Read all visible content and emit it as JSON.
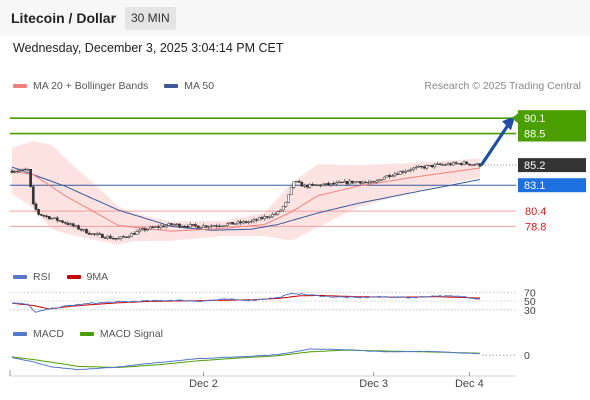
{
  "header": {
    "title": "Litecoin / Dollar",
    "timeframe": "30 MIN"
  },
  "datetime": "Wednesday, December 3, 2025 3:04:14 PM CET",
  "credit": "Research © 2025 Trading Central",
  "colors": {
    "ma20": "#f08080",
    "ma50": "#3a5a9c",
    "resistance": "#4a9e00",
    "support": "#e87a7a",
    "last": "#333333",
    "pivot": "#1e6fe0",
    "rsi": "#5577cc",
    "rsi_ma": "#cc0000",
    "macd": "#5577cc",
    "macd_signal": "#4a9e00"
  },
  "chart_data": [
    {
      "type": "candlestick",
      "legend": [
        {
          "name": "MA 20 + Bollinger Bands",
          "color": "#f08080"
        },
        {
          "name": "MA 50",
          "color": "#3a5a9c"
        }
      ],
      "ylim": [
        75.5,
        92.0
      ],
      "levels": [
        {
          "value": 90.1,
          "label": "90.1",
          "kind": "resistance"
        },
        {
          "value": 88.5,
          "label": "88.5",
          "kind": "resistance"
        },
        {
          "value": 85.2,
          "label": "85.2",
          "kind": "last"
        },
        {
          "value": 83.1,
          "label": "83.1",
          "kind": "pivot"
        },
        {
          "value": 80.4,
          "label": "80.4",
          "kind": "support"
        },
        {
          "value": 78.8,
          "label": "78.8",
          "kind": "support"
        }
      ],
      "arrow": {
        "from": 85.2,
        "to": 90.1,
        "direction": "up"
      },
      "close_anchors": [
        [
          0,
          84.6
        ],
        [
          6,
          84.7
        ],
        [
          8,
          81.0
        ],
        [
          10,
          80.1
        ],
        [
          20,
          79.2
        ],
        [
          30,
          78.0
        ],
        [
          40,
          77.5
        ],
        [
          50,
          78.5
        ],
        [
          60,
          79.0
        ],
        [
          70,
          78.8
        ],
        [
          80,
          79.0
        ],
        [
          90,
          79.3
        ],
        [
          100,
          80.2
        ],
        [
          103,
          81.2
        ],
        [
          106,
          83.5
        ],
        [
          110,
          83.0
        ],
        [
          120,
          83.2
        ],
        [
          130,
          83.5
        ],
        [
          136,
          83.3
        ],
        [
          140,
          84.0
        ],
        [
          150,
          84.8
        ],
        [
          160,
          85.2
        ],
        [
          170,
          85.4
        ],
        [
          176,
          85.2
        ]
      ],
      "ma20_anchors": [
        [
          0,
          84.6
        ],
        [
          8,
          84.2
        ],
        [
          20,
          82.0
        ],
        [
          40,
          78.9
        ],
        [
          60,
          78.3
        ],
        [
          80,
          78.6
        ],
        [
          95,
          79.0
        ],
        [
          105,
          80.3
        ],
        [
          115,
          82.0
        ],
        [
          130,
          83.0
        ],
        [
          150,
          83.9
        ],
        [
          176,
          84.9
        ]
      ],
      "ma50_anchors": [
        [
          0,
          85.0
        ],
        [
          20,
          83.0
        ],
        [
          40,
          80.5
        ],
        [
          60,
          78.8
        ],
        [
          75,
          78.4
        ],
        [
          90,
          78.5
        ],
        [
          100,
          79.0
        ],
        [
          115,
          80.2
        ],
        [
          130,
          81.2
        ],
        [
          150,
          82.3
        ],
        [
          176,
          83.7
        ]
      ],
      "bb_width_anchors": [
        [
          0,
          2.4
        ],
        [
          8,
          3.5
        ],
        [
          15,
          4.4
        ],
        [
          30,
          3.0
        ],
        [
          45,
          1.5
        ],
        [
          60,
          1.0
        ],
        [
          80,
          0.8
        ],
        [
          95,
          1.2
        ],
        [
          105,
          3.0
        ],
        [
          115,
          3.3
        ],
        [
          130,
          2.2
        ],
        [
          150,
          1.5
        ],
        [
          176,
          1.0
        ]
      ],
      "x_ticks": [
        {
          "index": 72,
          "label": "Dec 2"
        },
        {
          "index": 136,
          "label": "Dec 3"
        },
        {
          "index": 172,
          "label": "Dec 4"
        }
      ],
      "candles": 177
    },
    {
      "type": "line",
      "legend": [
        {
          "name": "RSI",
          "color": "#5577cc"
        },
        {
          "name": "9MA",
          "color": "#cc0000"
        }
      ],
      "ylim": [
        25,
        80
      ],
      "ref_levels": [
        {
          "value": 70,
          "label": "70"
        },
        {
          "value": 50,
          "label": "50"
        },
        {
          "value": 30,
          "label": "30"
        }
      ],
      "rsi_anchors": [
        [
          0,
          46
        ],
        [
          6,
          42
        ],
        [
          9,
          24
        ],
        [
          14,
          32
        ],
        [
          22,
          40
        ],
        [
          30,
          45
        ],
        [
          40,
          48
        ],
        [
          50,
          50
        ],
        [
          60,
          52
        ],
        [
          70,
          50
        ],
        [
          80,
          54
        ],
        [
          90,
          52
        ],
        [
          100,
          58
        ],
        [
          106,
          68
        ],
        [
          112,
          64
        ],
        [
          120,
          60
        ],
        [
          130,
          58
        ],
        [
          140,
          60
        ],
        [
          150,
          58
        ],
        [
          160,
          62
        ],
        [
          170,
          60
        ],
        [
          176,
          55
        ]
      ],
      "ma9_anchors": [
        [
          0,
          45
        ],
        [
          8,
          40
        ],
        [
          14,
          32
        ],
        [
          22,
          38
        ],
        [
          30,
          42
        ],
        [
          40,
          46
        ],
        [
          50,
          49
        ],
        [
          60,
          50
        ],
        [
          70,
          51
        ],
        [
          80,
          52
        ],
        [
          90,
          53
        ],
        [
          100,
          56
        ],
        [
          108,
          62
        ],
        [
          116,
          63
        ],
        [
          130,
          60
        ],
        [
          145,
          59
        ],
        [
          160,
          60
        ],
        [
          176,
          57
        ]
      ]
    },
    {
      "type": "line",
      "legend": [
        {
          "name": "MACD",
          "color": "#5577cc"
        },
        {
          "name": "MACD Signal",
          "color": "#4a9e00"
        }
      ],
      "ylim": [
        -1.5,
        1.0
      ],
      "ref_levels": [
        {
          "value": 0,
          "label": "0"
        }
      ],
      "macd_anchors": [
        [
          0,
          -0.2
        ],
        [
          8,
          -0.6
        ],
        [
          15,
          -1.05
        ],
        [
          25,
          -1.3
        ],
        [
          40,
          -1.05
        ],
        [
          55,
          -0.65
        ],
        [
          70,
          -0.3
        ],
        [
          85,
          -0.15
        ],
        [
          100,
          0.05
        ],
        [
          112,
          0.55
        ],
        [
          125,
          0.5
        ],
        [
          140,
          0.3
        ],
        [
          155,
          0.35
        ],
        [
          170,
          0.2
        ],
        [
          176,
          0.15
        ]
      ],
      "signal_anchors": [
        [
          0,
          -0.15
        ],
        [
          10,
          -0.45
        ],
        [
          25,
          -1.0
        ],
        [
          40,
          -1.1
        ],
        [
          55,
          -0.85
        ],
        [
          70,
          -0.5
        ],
        [
          85,
          -0.25
        ],
        [
          100,
          -0.05
        ],
        [
          112,
          0.3
        ],
        [
          125,
          0.45
        ],
        [
          140,
          0.38
        ],
        [
          155,
          0.3
        ],
        [
          170,
          0.22
        ],
        [
          176,
          0.18
        ]
      ]
    }
  ]
}
